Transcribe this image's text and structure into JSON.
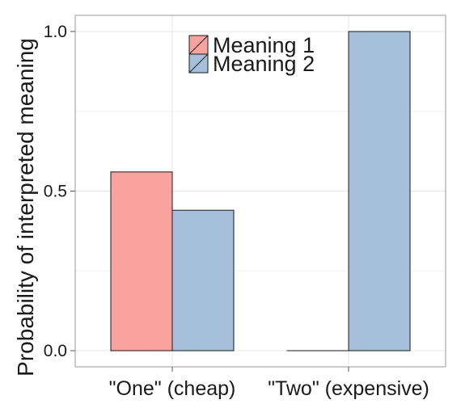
{
  "chart_data": {
    "type": "bar",
    "categories": [
      "\"One\" (cheap)",
      "\"Two\" (expensive)"
    ],
    "series": [
      {
        "name": "Meaning 1",
        "values": [
          0.56,
          0.0
        ],
        "color": "#f8a39e"
      },
      {
        "name": "Meaning 2",
        "values": [
          0.44,
          1.0
        ],
        "color": "#a6c0dc"
      }
    ],
    "xlabel": "",
    "ylabel": "Probability of interpreted meaning",
    "ylim": [
      -0.05,
      1.05
    ],
    "yticks": [
      "0.0",
      "0.5",
      "1.0"
    ],
    "ytick_values": [
      0.0,
      0.5,
      1.0
    ],
    "grid": true,
    "legend_position": "top-center"
  }
}
